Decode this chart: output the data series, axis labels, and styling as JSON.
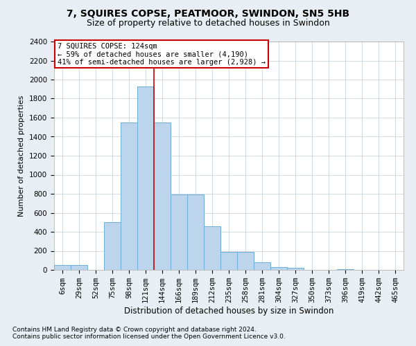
{
  "title1": "7, SQUIRES COPSE, PEATMOOR, SWINDON, SN5 5HB",
  "title2": "Size of property relative to detached houses in Swindon",
  "xlabel": "Distribution of detached houses by size in Swindon",
  "ylabel": "Number of detached properties",
  "bar_labels": [
    "6sqm",
    "29sqm",
    "52sqm",
    "75sqm",
    "98sqm",
    "121sqm",
    "144sqm",
    "166sqm",
    "189sqm",
    "212sqm",
    "235sqm",
    "258sqm",
    "281sqm",
    "304sqm",
    "327sqm",
    "350sqm",
    "373sqm",
    "396sqm",
    "419sqm",
    "442sqm",
    "465sqm"
  ],
  "bar_values": [
    50,
    50,
    0,
    500,
    1550,
    1930,
    1550,
    790,
    790,
    460,
    190,
    190,
    80,
    30,
    20,
    0,
    0,
    10,
    0,
    0,
    0
  ],
  "bar_color": "#bdd5ec",
  "bar_edge_color": "#6aaed6",
  "vline_index": 5,
  "vline_color": "#cc0000",
  "annotation_line1": "7 SQUIRES COPSE: 124sqm",
  "annotation_line2": "← 59% of detached houses are smaller (4,190)",
  "annotation_line3": "41% of semi-detached houses are larger (2,928) →",
  "annotation_box_color": "#cc0000",
  "ylim": [
    0,
    2400
  ],
  "yticks": [
    0,
    200,
    400,
    600,
    800,
    1000,
    1200,
    1400,
    1600,
    1800,
    2000,
    2200,
    2400
  ],
  "footnote1": "Contains HM Land Registry data © Crown copyright and database right 2024.",
  "footnote2": "Contains public sector information licensed under the Open Government Licence v3.0.",
  "background_color": "#e8eef4",
  "plot_bg_color": "#ffffff",
  "title1_fontsize": 10,
  "title2_fontsize": 9,
  "xlabel_fontsize": 8.5,
  "ylabel_fontsize": 8,
  "tick_fontsize": 7.5,
  "footnote_fontsize": 6.5
}
